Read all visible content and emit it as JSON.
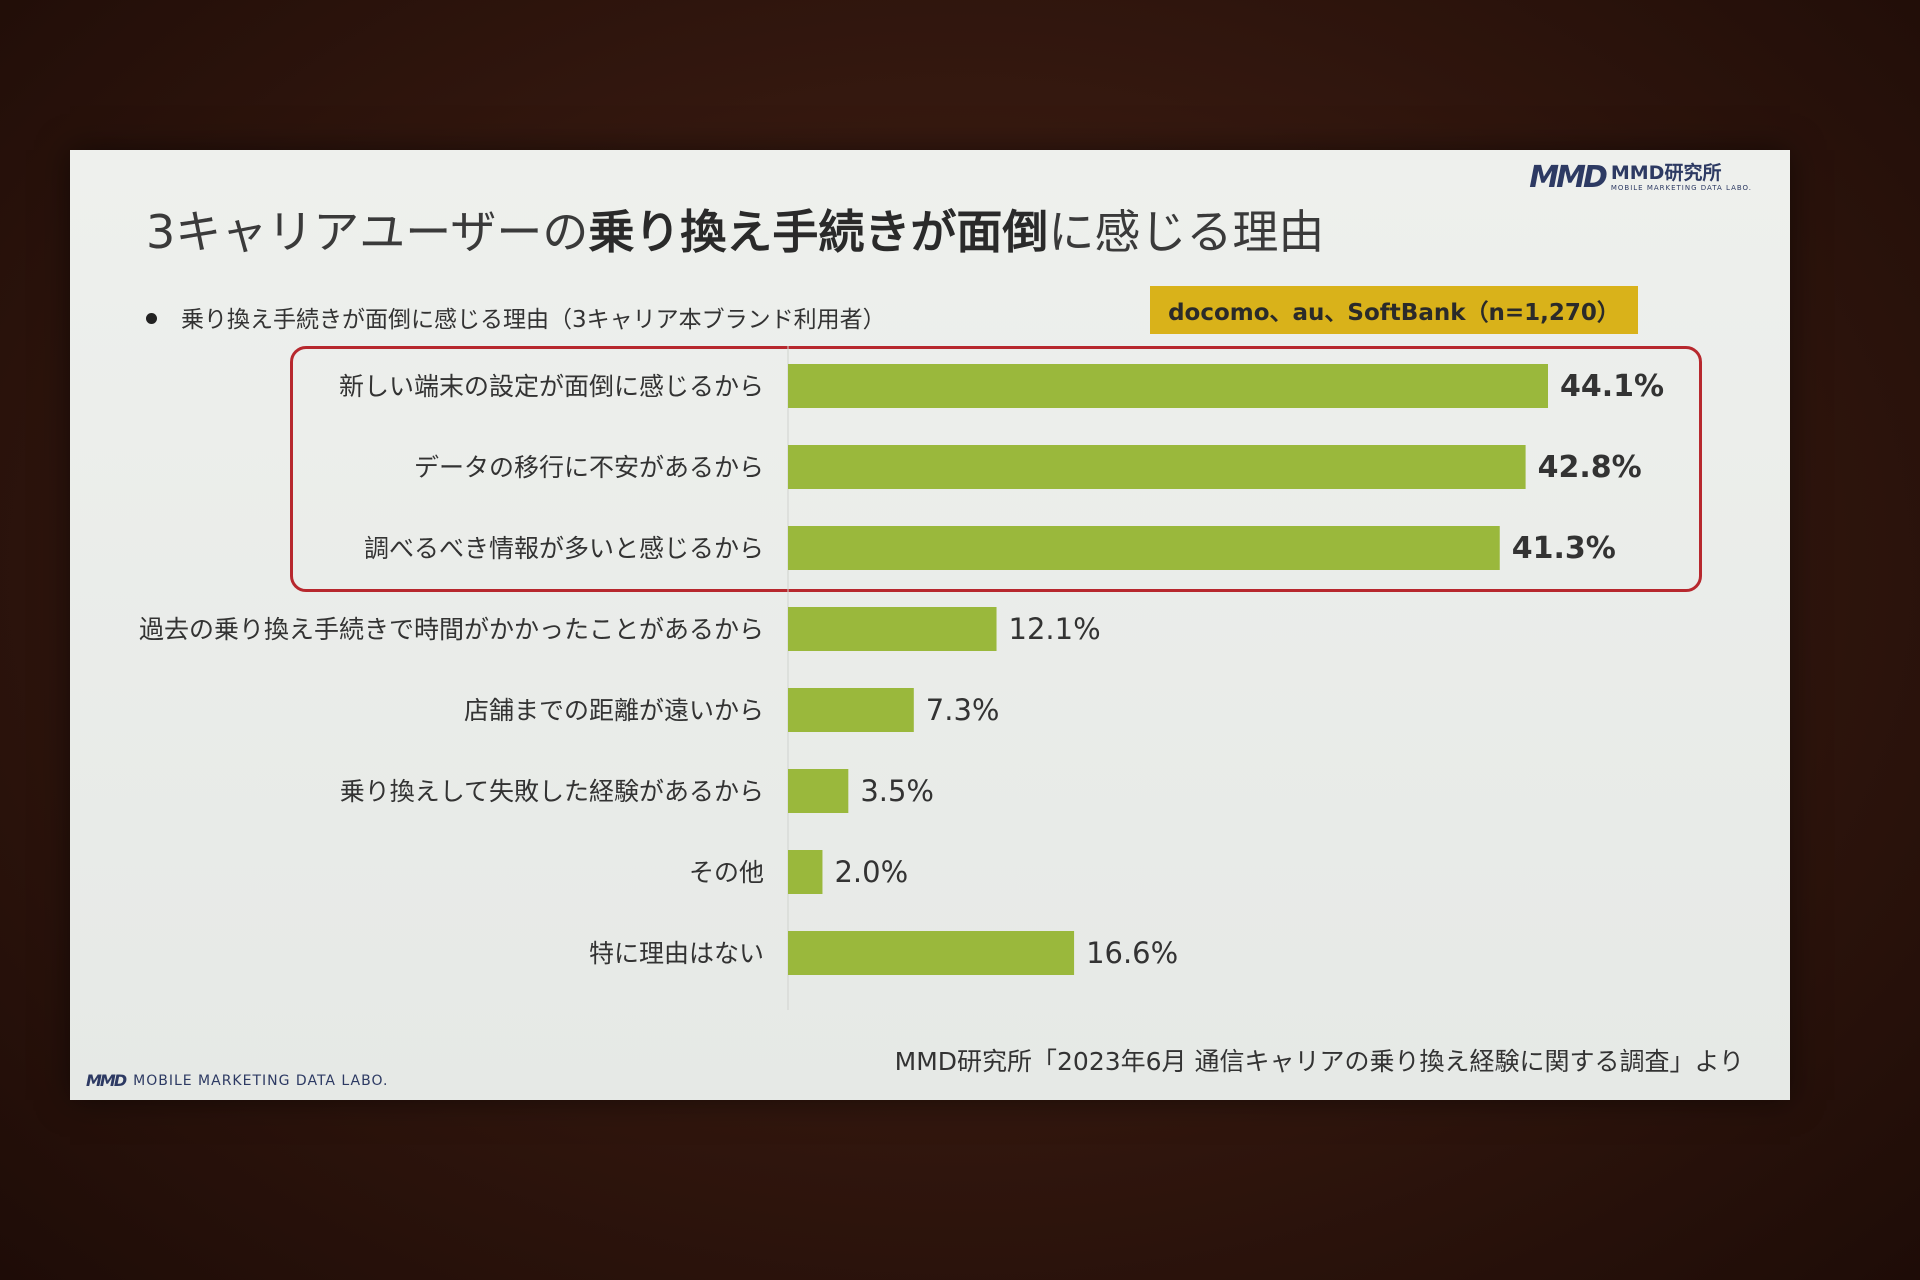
{
  "slide": {
    "logo_mark": "MMD",
    "logo_name": "MMD研究所",
    "logo_sub": "MOBILE MARKETING DATA LABO.",
    "title_prefix": "3キャリアユーザーの",
    "title_bold": "乗り換え手続きが面倒",
    "title_suffix": "に感じる理由",
    "subtitle": "乗り換え手続きが面倒に感じる理由（3キャリア本ブランド利用者）",
    "badge": "docomo、au、SoftBank（n=1,270）",
    "footer_mark": "MMD",
    "footer_text": "MOBILE MARKETING DATA LABO.",
    "source": "MMD研究所「2023年6月 通信キャリアの乗り換え経験に関する調査」より"
  },
  "colors": {
    "bar": "#9ab83c",
    "highlight_border": "#b7282e",
    "badge": "#d9b21a"
  },
  "chart_data": {
    "type": "bar",
    "orientation": "horizontal",
    "categories": [
      "新しい端末の設定が面倒に感じるから",
      "データの移行に不安があるから",
      "調べるべき情報が多いと感じるから",
      "過去の乗り換え手続きで時間がかかったことがあるから",
      "店舗までの距離が遠いから",
      "乗り換えして失敗した経験があるから",
      "その他",
      "特に理由はない"
    ],
    "values": [
      44.1,
      42.8,
      41.3,
      12.1,
      7.3,
      3.5,
      2.0,
      16.6
    ],
    "value_labels": [
      "44.1%",
      "42.8%",
      "41.3%",
      "12.1%",
      "7.3%",
      "3.5%",
      "2.0%",
      "16.6%"
    ],
    "highlighted": [
      true,
      true,
      true,
      false,
      false,
      false,
      false,
      false
    ],
    "xlim": [
      0,
      50
    ],
    "grid": false,
    "legend": "none"
  }
}
